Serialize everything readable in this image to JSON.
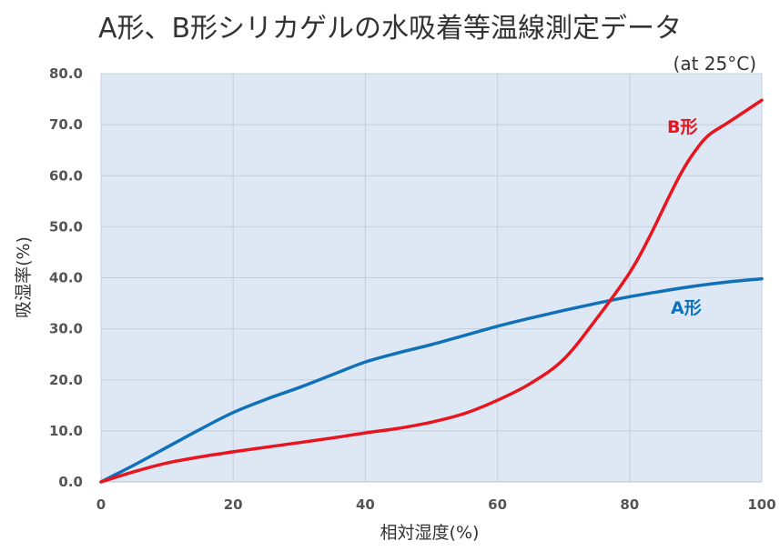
{
  "chart_data": {
    "type": "line",
    "title": "A形、B形シリカゲルの水吸着等温線測定データ",
    "subtitle": "(at 25°C)",
    "xlabel": "相対湿度(%)",
    "ylabel": "吸湿率(%)",
    "xlim": [
      0,
      100
    ],
    "ylim": [
      0,
      80
    ],
    "x_ticks": [
      "0",
      "20",
      "40",
      "60",
      "80",
      "100"
    ],
    "y_ticks": [
      "0.0",
      "10.0",
      "20.0",
      "30.0",
      "40.0",
      "50.0",
      "60.0",
      "70.0",
      "80.0"
    ],
    "grid": true,
    "plot_background": "#dde8f4",
    "series": [
      {
        "name": "A形",
        "color": "#1070b8",
        "x": [
          0,
          5,
          10,
          15,
          20,
          25,
          30,
          35,
          40,
          45,
          50,
          55,
          60,
          65,
          70,
          75,
          80,
          85,
          90,
          95,
          100
        ],
        "y": [
          0,
          3.3,
          6.8,
          10.3,
          13.6,
          16.2,
          18.5,
          21.0,
          23.5,
          25.3,
          26.9,
          28.7,
          30.5,
          32.1,
          33.6,
          35.0,
          36.3,
          37.4,
          38.4,
          39.2,
          39.8
        ]
      },
      {
        "name": "B形",
        "color": "#e8141e",
        "x": [
          0,
          5,
          10,
          15,
          20,
          25,
          30,
          35,
          40,
          45,
          50,
          55,
          60,
          65,
          70,
          75,
          80,
          83,
          86,
          88,
          90,
          92,
          95,
          100
        ],
        "y": [
          0,
          2.0,
          3.7,
          4.9,
          5.9,
          6.8,
          7.7,
          8.6,
          9.6,
          10.5,
          11.7,
          13.4,
          16.0,
          19.3,
          24.0,
          32.0,
          41.0,
          48.0,
          56.0,
          61.0,
          65.0,
          68.0,
          70.5,
          74.8
        ]
      }
    ]
  }
}
